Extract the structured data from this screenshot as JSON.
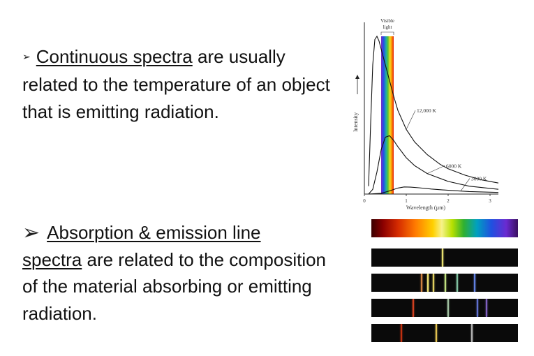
{
  "bullets": [
    {
      "underlined": "Continuous spectra",
      "rest": " are usually related to the temperature of an object that is emitting radiation."
    },
    {
      "lead": "Absorption & emission line",
      "underlined": "spectra",
      "rest": " are related to the composition of the material absorbing or emitting radiation."
    }
  ],
  "chart_data": {
    "type": "line",
    "title": "",
    "xlabel": "Wavelength (µm)",
    "ylabel": "Intensity",
    "band_label": [
      "Visible",
      "light"
    ],
    "xlim": [
      0,
      3.2
    ],
    "ylim": [
      0,
      1
    ],
    "x_ticks": [
      "0",
      "1",
      "2",
      "3"
    ],
    "visible_band": [
      0.4,
      0.7
    ],
    "series": [
      {
        "name": "12,000 K",
        "x": [
          0.1,
          0.15,
          0.2,
          0.25,
          0.3,
          0.35,
          0.4,
          0.5,
          0.6,
          0.7,
          0.8,
          1.0,
          1.2,
          1.5,
          1.8,
          2.0,
          2.4,
          2.8,
          3.2
        ],
        "y": [
          0.05,
          0.45,
          0.82,
          0.98,
          1.0,
          0.97,
          0.92,
          0.82,
          0.72,
          0.62,
          0.53,
          0.41,
          0.33,
          0.25,
          0.19,
          0.16,
          0.12,
          0.09,
          0.07
        ]
      },
      {
        "name": "6000 K",
        "x": [
          0.1,
          0.2,
          0.3,
          0.4,
          0.5,
          0.6,
          0.7,
          0.8,
          1.0,
          1.2,
          1.5,
          2.0,
          2.5,
          3.2
        ],
        "y": [
          0.0,
          0.03,
          0.14,
          0.28,
          0.36,
          0.37,
          0.34,
          0.3,
          0.23,
          0.18,
          0.13,
          0.08,
          0.05,
          0.03
        ]
      },
      {
        "name": "3000 K",
        "x": [
          0.1,
          0.4,
          0.6,
          0.8,
          0.95,
          1.1,
          1.3,
          1.6,
          2.0,
          2.5,
          3.2
        ],
        "y": [
          0.0,
          0.005,
          0.02,
          0.038,
          0.045,
          0.044,
          0.04,
          0.032,
          0.024,
          0.016,
          0.01
        ]
      }
    ]
  },
  "spectra": {
    "strips": [
      {
        "kind": "continuous",
        "lines": []
      },
      {
        "kind": "dark",
        "lines": [
          {
            "pos": 0.48,
            "color": "#e8e070"
          }
        ]
      },
      {
        "kind": "dark",
        "lines": [
          {
            "pos": 0.34,
            "color": "#d08040"
          },
          {
            "pos": 0.38,
            "color": "#f0e070"
          },
          {
            "pos": 0.42,
            "color": "#e0d060"
          },
          {
            "pos": 0.5,
            "color": "#c0e080"
          },
          {
            "pos": 0.58,
            "color": "#80c0a0"
          },
          {
            "pos": 0.7,
            "color": "#6080e0"
          }
        ]
      },
      {
        "kind": "dark",
        "lines": [
          {
            "pos": 0.28,
            "color": "#d04020"
          },
          {
            "pos": 0.52,
            "color": "#a0c0a0"
          },
          {
            "pos": 0.72,
            "color": "#6070d0"
          },
          {
            "pos": 0.78,
            "color": "#8060c0"
          }
        ]
      },
      {
        "kind": "dark",
        "lines": [
          {
            "pos": 0.2,
            "color": "#c03010"
          },
          {
            "pos": 0.44,
            "color": "#e0c050"
          },
          {
            "pos": 0.68,
            "color": "#b0b0b0"
          }
        ]
      }
    ]
  }
}
